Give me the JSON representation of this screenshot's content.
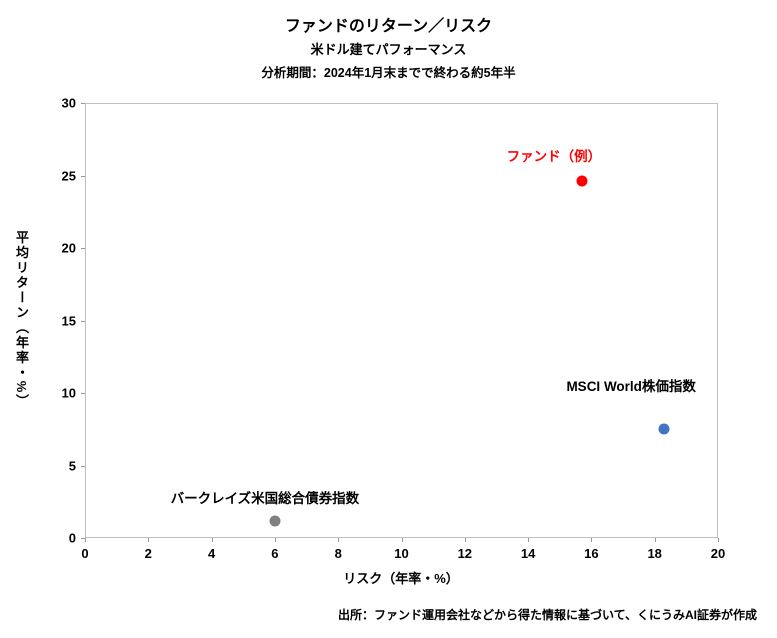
{
  "header": {
    "title": "ファンドのリターン／リスク",
    "subtitle": "米ドル建てパフォーマンス",
    "period": "分析期間：2024年1月末までで終わる約5年半"
  },
  "footer": {
    "source": "出所：ファンド運用会社などから得た情報に基づいて、くにうみAI証券が作成"
  },
  "chart_data": {
    "type": "scatter",
    "title": "ファンドのリターン／リスク",
    "xlabel": "リスク（年率・%）",
    "ylabel": "平均リターン（年率・%）",
    "xlim": [
      0,
      20
    ],
    "ylim": [
      0,
      30
    ],
    "x_ticks": [
      0,
      2,
      4,
      6,
      8,
      10,
      12,
      14,
      16,
      18,
      20
    ],
    "y_ticks": [
      0,
      5,
      10,
      15,
      20,
      25,
      30
    ],
    "grid": false,
    "legend": "none",
    "series": [
      {
        "name": "ファンド（例）",
        "x": 15.7,
        "y": 24.6,
        "color": "#ff0000",
        "label_color": "#ff0000",
        "label_dx": -28,
        "label_dy": -16
      },
      {
        "name": "MSCI World株価指数",
        "x": 18.3,
        "y": 7.5,
        "color": "#4472c4",
        "label_color": "#000000",
        "label_dx": -33,
        "label_dy": -34
      },
      {
        "name": "バークレイズ米国総合債券指数",
        "x": 6.0,
        "y": 1.2,
        "color": "#808080",
        "label_color": "#000000",
        "label_dx": -10,
        "label_dy": -14
      }
    ]
  }
}
